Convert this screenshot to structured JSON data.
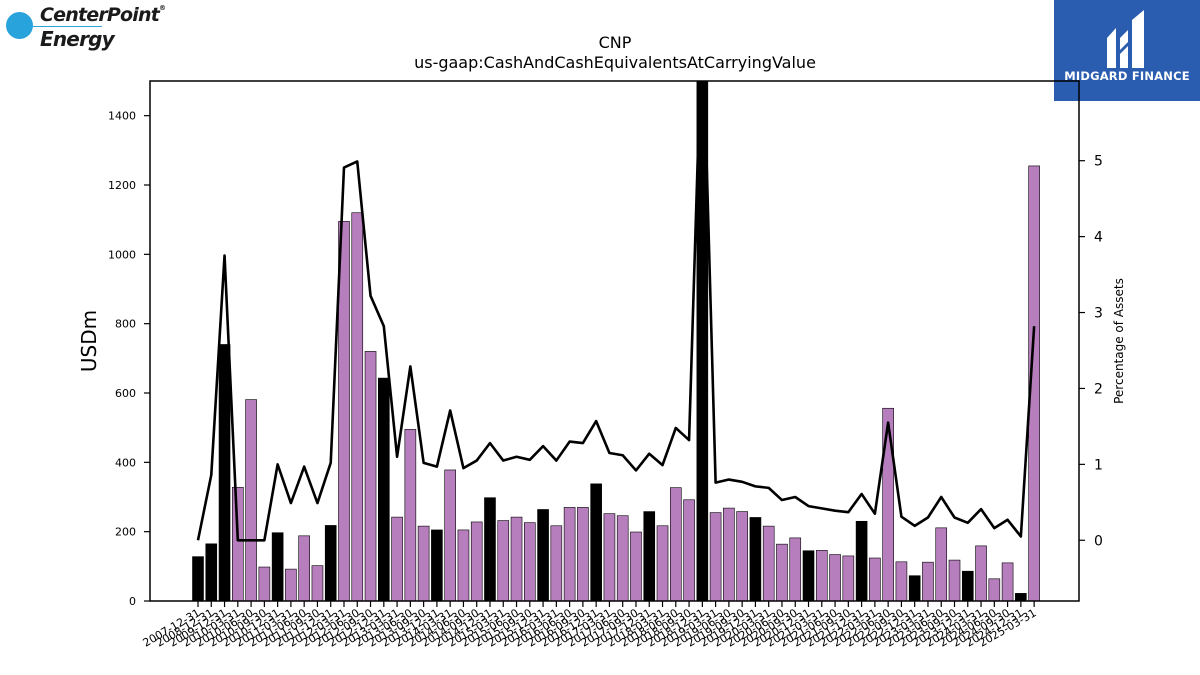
{
  "branding": {
    "left_logo_line1": "CenterPoint",
    "left_logo_mark": "®",
    "left_logo_line2": "Energy",
    "left_logo_color": "#29a3dc",
    "right_logo_text": "MIDGARD FINANCE",
    "right_logo_color": "#2a5db0"
  },
  "chart_data": {
    "type": "bar",
    "title": "CNP",
    "subtitle": "us-gaap:CashAndCashEquivalentsAtCarryingValue",
    "ylabel": "USDm",
    "y2label": "Percentage of Assets",
    "ylim": [
      0,
      1500
    ],
    "y2lim": [
      -0.8,
      6.05
    ],
    "yticks": [
      0,
      200,
      400,
      600,
      800,
      1000,
      1200,
      1400
    ],
    "y2ticks": [
      0,
      1,
      2,
      3,
      4,
      5
    ],
    "colors": {
      "annual": "#000000",
      "quarterly": "#b77ebd",
      "line": "#000000"
    },
    "categories": [
      "2007-12-31",
      "2008-12-31",
      "2009-12-31",
      "2010-03-31",
      "2010-06-30",
      "2010-09-30",
      "2010-12-31",
      "2011-03-31",
      "2011-06-30",
      "2011-09-30",
      "2011-12-31",
      "2012-03-31",
      "2012-06-30",
      "2012-09-30",
      "2012-12-31",
      "2013-03-31",
      "2013-06-30",
      "2013-09-30",
      "2013-12-31",
      "2014-03-31",
      "2014-06-30",
      "2014-09-30",
      "2014-12-31",
      "2015-03-31",
      "2015-06-30",
      "2015-09-30",
      "2015-12-31",
      "2016-03-31",
      "2016-06-30",
      "2016-09-30",
      "2016-12-31",
      "2017-03-31",
      "2017-06-30",
      "2017-09-30",
      "2017-12-31",
      "2018-03-31",
      "2018-06-30",
      "2018-09-30",
      "2018-12-31",
      "2019-03-31",
      "2019-06-30",
      "2019-09-30",
      "2019-12-31",
      "2020-03-31",
      "2020-06-30",
      "2020-09-30",
      "2020-12-31",
      "2021-03-31",
      "2021-06-30",
      "2021-09-30",
      "2021-12-31",
      "2022-03-31",
      "2022-06-30",
      "2022-09-30",
      "2022-12-31",
      "2023-03-31",
      "2023-06-30",
      "2023-09-30",
      "2023-12-31",
      "2024-03-31",
      "2024-06-30",
      "2024-09-30",
      "2024-12-31",
      "2025-03-31"
    ],
    "series": [
      {
        "values": [
          128,
          165,
          740,
          328,
          581,
          98,
          197,
          92,
          188,
          102,
          218,
          1095,
          1120,
          720,
          643,
          242,
          495,
          216,
          205,
          378,
          205,
          228,
          298,
          232,
          242,
          226,
          264,
          217,
          270,
          270,
          338,
          252,
          246,
          199,
          258,
          217,
          327,
          292,
          1505,
          255,
          268,
          258,
          241,
          216,
          164,
          182,
          145,
          146,
          134,
          130,
          230,
          124,
          556,
          113,
          73,
          112,
          211,
          118,
          86,
          159,
          64,
          110,
          22,
          1255
        ]
      },
      {
        "values": [
          0.0,
          0.86,
          3.75,
          0.0,
          0.0,
          0.0,
          1.0,
          0.49,
          0.97,
          0.49,
          1.02,
          4.91,
          4.99,
          3.22,
          2.82,
          1.1,
          2.29,
          1.02,
          0.97,
          1.71,
          0.95,
          1.05,
          1.28,
          1.05,
          1.1,
          1.06,
          1.24,
          1.05,
          1.3,
          1.28,
          1.57,
          1.15,
          1.12,
          0.92,
          1.14,
          0.99,
          1.48,
          1.32,
          7.0,
          0.76,
          0.8,
          0.77,
          0.71,
          0.69,
          0.53,
          0.57,
          0.45,
          0.42,
          0.39,
          0.37,
          0.61,
          0.35,
          1.55,
          0.31,
          0.19,
          0.3,
          0.57,
          0.3,
          0.23,
          0.41,
          0.16,
          0.27,
          0.05,
          2.82
        ]
      }
    ]
  }
}
